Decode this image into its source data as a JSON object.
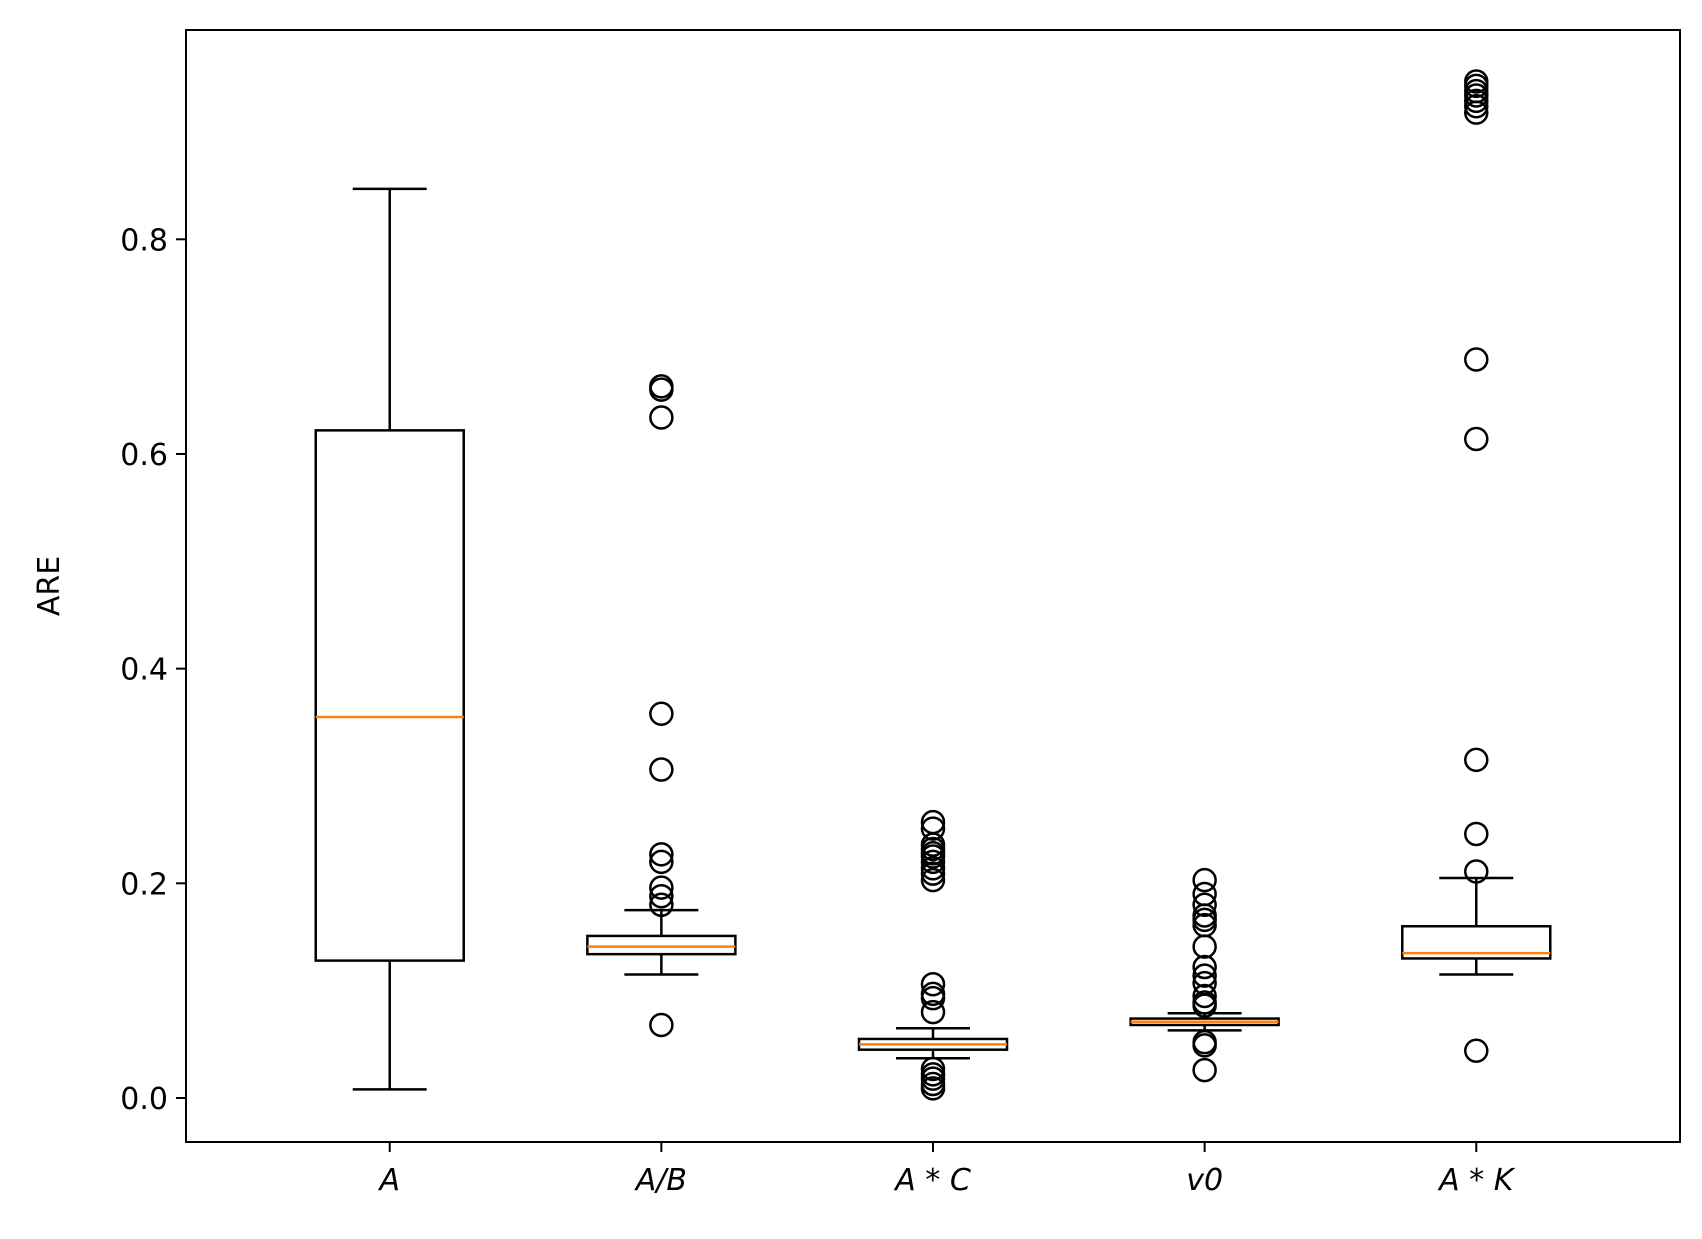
{
  "chart_data": {
    "type": "boxplot",
    "title": "",
    "xlabel": "",
    "ylabel": "ARE",
    "ylim": [
      -0.041,
      0.995
    ],
    "yticks": [
      0.0,
      0.2,
      0.4,
      0.6,
      0.8
    ],
    "ytick_labels": [
      "0.0",
      "0.2",
      "0.4",
      "0.6",
      "0.8"
    ],
    "grid": false,
    "colors": {
      "box": "#000000",
      "median": "#ff7f0e",
      "flier": "#000000"
    },
    "categories": [
      "A",
      "A/B",
      "A * C",
      "v0",
      "A * K"
    ],
    "boxes": [
      {
        "label": "A",
        "whislo": 0.008,
        "q1": 0.128,
        "median": 0.355,
        "q3": 0.622,
        "whishi": 0.847,
        "fliers": []
      },
      {
        "label": "A/B",
        "whislo": 0.115,
        "q1": 0.134,
        "median": 0.141,
        "q3": 0.151,
        "whishi": 0.175,
        "fliers": [
          0.663,
          0.66,
          0.634,
          0.358,
          0.306,
          0.227,
          0.22,
          0.196,
          0.188,
          0.18,
          0.068
        ]
      },
      {
        "label": "A * C",
        "whislo": 0.037,
        "q1": 0.045,
        "median": 0.05,
        "q3": 0.055,
        "whishi": 0.065,
        "fliers": [
          0.257,
          0.251,
          0.236,
          0.232,
          0.228,
          0.225,
          0.22,
          0.214,
          0.209,
          0.203,
          0.106,
          0.097,
          0.093,
          0.08,
          0.027,
          0.022,
          0.018,
          0.013,
          0.009
        ]
      },
      {
        "label": "v0",
        "whislo": 0.063,
        "q1": 0.068,
        "median": 0.071,
        "q3": 0.074,
        "whishi": 0.079,
        "fliers": [
          0.203,
          0.19,
          0.18,
          0.17,
          0.166,
          0.161,
          0.141,
          0.122,
          0.114,
          0.107,
          0.095,
          0.089,
          0.086,
          0.052,
          0.049,
          0.026
        ]
      },
      {
        "label": "A * K",
        "whislo": 0.115,
        "q1": 0.13,
        "median": 0.135,
        "q3": 0.16,
        "whishi": 0.205,
        "fliers": [
          0.947,
          0.943,
          0.938,
          0.934,
          0.929,
          0.924,
          0.918,
          0.688,
          0.614,
          0.315,
          0.246,
          0.211,
          0.044
        ]
      }
    ]
  }
}
